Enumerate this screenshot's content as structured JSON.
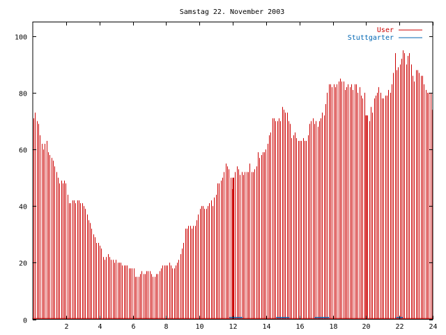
{
  "chart_data": {
    "type": "bar",
    "title": "Samstag 22. November 2003",
    "xlabel": "",
    "ylabel": "",
    "xlim": [
      0,
      24
    ],
    "ylim": [
      0,
      105
    ],
    "xticks": [
      "2",
      "4",
      "6",
      "8",
      "10",
      "12",
      "14",
      "16",
      "18",
      "20",
      "22",
      "24"
    ],
    "yticks": [
      "0",
      "20",
      "40",
      "60",
      "80",
      "100"
    ],
    "grid": false,
    "legend_position": "top-right",
    "bar_interval_hours": 0.0833,
    "series": [
      {
        "name": "User",
        "color": "#cc0000",
        "values": [
          71,
          73,
          70,
          69,
          65,
          62,
          60,
          62,
          63,
          59,
          58,
          57,
          56,
          54,
          52,
          50,
          48,
          49,
          48,
          49,
          48,
          44,
          41,
          41,
          42,
          42,
          41,
          42,
          42,
          41,
          41,
          40,
          39,
          37,
          35,
          34,
          32,
          30,
          29,
          27,
          27,
          26,
          25,
          22,
          21,
          22,
          23,
          22,
          21,
          21,
          20,
          21,
          20,
          20,
          20,
          19,
          19,
          19,
          19,
          18,
          18,
          18,
          18,
          15,
          15,
          15,
          16,
          17,
          16,
          16,
          17,
          17,
          17,
          16,
          15,
          15,
          16,
          16,
          17,
          18,
          19,
          19,
          19,
          19,
          20,
          19,
          18,
          18,
          19,
          20,
          21,
          23,
          25,
          27,
          32,
          32,
          33,
          33,
          32,
          33,
          33,
          35,
          37,
          39,
          40,
          40,
          39,
          39,
          40,
          41,
          42,
          40,
          43,
          44,
          48,
          48,
          49,
          50,
          52,
          55,
          54,
          53,
          50,
          46,
          50,
          52,
          54,
          53,
          51,
          52,
          51,
          52,
          52,
          52,
          55,
          52,
          52,
          53,
          54,
          59,
          57,
          58,
          59,
          59,
          60,
          62,
          65,
          66,
          71,
          71,
          70,
          70,
          71,
          70,
          75,
          74,
          73,
          73,
          70,
          69,
          64,
          65,
          66,
          64,
          63,
          63,
          63,
          64,
          63,
          63,
          65,
          69,
          70,
          71,
          69,
          70,
          68,
          70,
          71,
          73,
          72,
          76,
          80,
          83,
          83,
          82,
          83,
          82,
          83,
          84,
          85,
          84,
          84,
          81,
          82,
          83,
          82,
          83,
          81,
          83,
          83,
          80,
          82,
          79,
          78,
          80,
          72,
          72,
          70,
          75,
          73,
          78,
          79,
          80,
          82,
          80,
          78,
          78,
          79,
          79,
          81,
          80,
          83,
          87,
          94,
          88,
          89,
          90,
          92,
          95,
          94,
          90,
          93,
          94,
          90,
          86,
          84,
          88,
          88,
          87,
          86,
          86,
          83,
          81,
          80,
          80,
          80,
          74
        ],
        "baseline_level": 0.3,
        "marked_hours": [
          12,
          20
        ]
      },
      {
        "name": "Stuttgarter",
        "color": "#0066b3",
        "values": [],
        "baseline_level": 0.6,
        "visible_segments": [
          [
            11.8,
            12.6
          ],
          [
            14.6,
            15.4
          ],
          [
            16.9,
            17.8
          ],
          [
            21.8,
            22.2
          ]
        ]
      }
    ]
  }
}
